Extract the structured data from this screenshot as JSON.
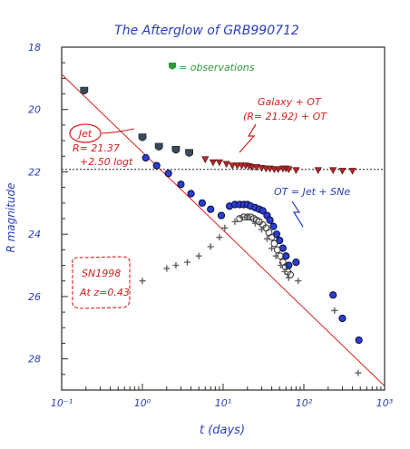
{
  "colors": {
    "title": "#2a3fb8",
    "axis_text": "#2a3fb8",
    "annotation_red": "#d42020",
    "annotation_blue": "#2a3fb8",
    "legend_green": "#2a9a3a",
    "obs_dark": "#3a4a5a",
    "blue_fill": "#2a3fd0",
    "triangle_fill": "#b22a2a",
    "plus_gray": "#606060"
  },
  "chart_data": {
    "type": "scatter",
    "title": "The Afterglow of GRB990712",
    "xlabel": "t (days)",
    "ylabel": "R magnitude",
    "x_scale": "log",
    "xlim": [
      0.1,
      1000
    ],
    "ylim": [
      18,
      29
    ],
    "y_inverted": true,
    "x_tick_labels": [
      "10⁻¹",
      "10⁰",
      "10¹",
      "10²",
      "10³"
    ],
    "x_tick_values": [
      0.1,
      1,
      10,
      100,
      1000
    ],
    "y_tick_labels": [
      "18",
      "20",
      "22",
      "24",
      "26",
      "28"
    ],
    "y_tick_values": [
      18,
      20,
      22,
      24,
      26,
      28
    ],
    "host_level": 21.92,
    "jet_line": {
      "a": 21.37,
      "b": 2.5
    },
    "series": [
      {
        "name": "observations",
        "marker": "shield",
        "points": [
          [
            0.19,
            19.4
          ],
          [
            1.0,
            20.9
          ],
          [
            1.6,
            21.2
          ],
          [
            2.6,
            21.3
          ],
          [
            3.8,
            21.4
          ]
        ]
      },
      {
        "name": "Galaxy + OT",
        "marker": "triangle",
        "points": [
          [
            6,
            21.6
          ],
          [
            7.5,
            21.7
          ],
          [
            9,
            21.7
          ],
          [
            11,
            21.75
          ],
          [
            13,
            21.8
          ],
          [
            15,
            21.8
          ],
          [
            17,
            21.8
          ],
          [
            19,
            21.8
          ],
          [
            21,
            21.82
          ],
          [
            23,
            21.85
          ],
          [
            26,
            21.85
          ],
          [
            30,
            21.88
          ],
          [
            34,
            21.9
          ],
          [
            38,
            21.9
          ],
          [
            43,
            21.92
          ],
          [
            48,
            21.92
          ],
          [
            55,
            21.9
          ],
          [
            60,
            21.9
          ],
          [
            65,
            21.92
          ],
          [
            80,
            21.95
          ],
          [
            150,
            21.95
          ],
          [
            230,
            21.95
          ],
          [
            300,
            21.97
          ],
          [
            400,
            21.97
          ]
        ]
      },
      {
        "name": "OT = Jet + SNe",
        "marker": "filled-circle",
        "points": [
          [
            1.1,
            21.55
          ],
          [
            1.5,
            21.8
          ],
          [
            2.1,
            22.05
          ],
          [
            3.0,
            22.4
          ],
          [
            4.0,
            22.7
          ],
          [
            5.5,
            23.0
          ],
          [
            7.0,
            23.2
          ],
          [
            9.5,
            23.4
          ],
          [
            12,
            23.1
          ],
          [
            14,
            23.05
          ],
          [
            16,
            23.05
          ],
          [
            18,
            23.05
          ],
          [
            20,
            23.05
          ],
          [
            22,
            23.1
          ],
          [
            25,
            23.15
          ],
          [
            28,
            23.2
          ],
          [
            31,
            23.25
          ],
          [
            35,
            23.4
          ],
          [
            38,
            23.55
          ],
          [
            42,
            23.75
          ],
          [
            46,
            24.0
          ],
          [
            50,
            24.2
          ],
          [
            55,
            24.45
          ],
          [
            60,
            24.7
          ],
          [
            65,
            25.0
          ],
          [
            80,
            24.9
          ],
          [
            230,
            25.95
          ],
          [
            300,
            26.7
          ],
          [
            480,
            27.4
          ]
        ]
      },
      {
        "name": "Jet + SNe (open)",
        "marker": "open-circle",
        "points": [
          [
            16,
            23.5
          ],
          [
            18,
            23.45
          ],
          [
            20,
            23.45
          ],
          [
            22,
            23.45
          ],
          [
            24,
            23.5
          ],
          [
            26,
            23.55
          ],
          [
            28,
            23.6
          ],
          [
            31,
            23.7
          ],
          [
            34,
            23.8
          ],
          [
            37,
            23.95
          ],
          [
            40,
            24.1
          ],
          [
            43,
            24.3
          ],
          [
            47,
            24.5
          ],
          [
            51,
            24.7
          ],
          [
            55,
            24.9
          ],
          [
            59,
            25.05
          ],
          [
            63,
            25.2
          ],
          [
            68,
            25.3
          ]
        ]
      },
      {
        "name": "SN1998",
        "marker": "plus",
        "points": [
          [
            1.0,
            25.5
          ],
          [
            2.0,
            25.1
          ],
          [
            2.6,
            25.0
          ],
          [
            3.6,
            24.9
          ],
          [
            5.0,
            24.7
          ],
          [
            7.0,
            24.4
          ],
          [
            9.0,
            24.1
          ],
          [
            10.5,
            23.8
          ],
          [
            14,
            23.6
          ],
          [
            17,
            23.45
          ],
          [
            20,
            23.45
          ],
          [
            25,
            23.65
          ],
          [
            30,
            23.85
          ],
          [
            35,
            24.15
          ],
          [
            40,
            24.45
          ],
          [
            45,
            24.7
          ],
          [
            52,
            25.0
          ],
          [
            58,
            25.2
          ],
          [
            65,
            25.4
          ],
          [
            85,
            25.5
          ],
          [
            240,
            26.45
          ],
          [
            470,
            28.45
          ]
        ]
      }
    ],
    "annotations": {
      "legend_obs": "= observations",
      "galaxy_line1": "Galaxy + OT",
      "galaxy_line2": "(R= 21.92) + OT",
      "jet_label": "Jet",
      "jet_eq1": "R= 21.37",
      "jet_eq2": "+2.50 logt",
      "ot_label": "OT = Jet + SNe",
      "sn_line1": "SN1998",
      "sn_line2": "At z=0.43"
    }
  }
}
